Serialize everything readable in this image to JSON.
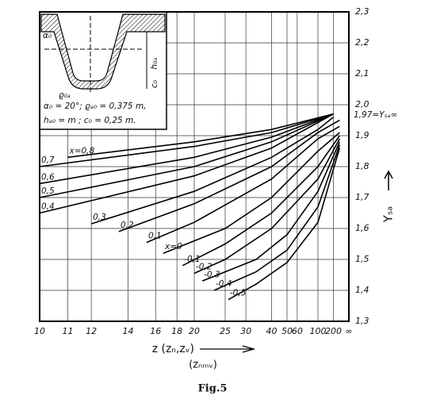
{
  "chart_data": {
    "type": "line",
    "xlabel": "z (zₙ,zᵥ)",
    "xlabel_sub": "(zₙₘᵥ)",
    "ylabel": "Yₛₐ",
    "xlim": [
      0.1,
      0
    ],
    "ylim": [
      1.3,
      2.3
    ],
    "xticks": [
      {
        "value": 0.1,
        "label": "10"
      },
      {
        "value": 0.0909,
        "label": "11"
      },
      {
        "value": 0.0833,
        "label": "12"
      },
      {
        "value": 0.0714,
        "label": "14"
      },
      {
        "value": 0.0625,
        "label": "16"
      },
      {
        "value": 0.0556,
        "label": "18"
      },
      {
        "value": 0.05,
        "label": "20"
      },
      {
        "value": 0.04,
        "label": "25"
      },
      {
        "value": 0.0333,
        "label": "30"
      },
      {
        "value": 0.025,
        "label": "40"
      },
      {
        "value": 0.02,
        "label": "50"
      },
      {
        "value": 0.0167,
        "label": "60"
      },
      {
        "value": 0.01,
        "label": "100"
      },
      {
        "value": 0.005,
        "label": "200"
      },
      {
        "value": 0,
        "label": "∞"
      }
    ],
    "yticks": [
      {
        "value": 1.3,
        "label": "1,3"
      },
      {
        "value": 1.4,
        "label": "1,4"
      },
      {
        "value": 1.5,
        "label": "1,5"
      },
      {
        "value": 1.6,
        "label": "1,6"
      },
      {
        "value": 1.7,
        "label": "1,7"
      },
      {
        "value": 1.8,
        "label": "1,8"
      },
      {
        "value": 1.9,
        "label": "1,9"
      },
      {
        "value": 2.0,
        "label": "2,0"
      },
      {
        "value": 2.1,
        "label": "2,1"
      },
      {
        "value": 2.2,
        "label": "2,2"
      },
      {
        "value": 2.3,
        "label": "2,3"
      }
    ],
    "grid": true,
    "color": "#000000",
    "series": [
      {
        "name": "x=0,8",
        "x": [
          0.0909,
          0.05,
          0.025,
          0.005
        ],
        "values": [
          1.83,
          1.88,
          1.92,
          1.97
        ]
      },
      {
        "name": "0,7",
        "x": [
          0.1,
          0.05,
          0.025,
          0.005
        ],
        "values": [
          1.8,
          1.865,
          1.91,
          1.97
        ]
      },
      {
        "name": "0,6",
        "x": [
          0.1,
          0.05,
          0.025,
          0.005
        ],
        "values": [
          1.745,
          1.83,
          1.895,
          1.97
        ]
      },
      {
        "name": "0,5",
        "x": [
          0.1,
          0.05,
          0.025,
          0.005
        ],
        "values": [
          1.7,
          1.8,
          1.88,
          1.97
        ]
      },
      {
        "name": "0,4",
        "x": [
          0.1,
          0.05,
          0.025,
          0.005
        ],
        "values": [
          1.65,
          1.77,
          1.86,
          1.97
        ]
      },
      {
        "name": "0,3",
        "x": [
          0.0833,
          0.05,
          0.025,
          0.01,
          0.005
        ],
        "values": [
          1.615,
          1.72,
          1.83,
          1.92,
          1.96
        ]
      },
      {
        "name": "0,2",
        "x": [
          0.0744,
          0.05,
          0.025,
          0.01,
          0.003
        ],
        "values": [
          1.59,
          1.68,
          1.8,
          1.91,
          1.95
        ]
      },
      {
        "name": "0,1",
        "x": [
          0.0654,
          0.05,
          0.025,
          0.01,
          0.003
        ],
        "values": [
          1.555,
          1.62,
          1.76,
          1.89,
          1.93
        ]
      },
      {
        "name": "x=0",
        "x": [
          0.06,
          0.04,
          0.025,
          0.01,
          0.003
        ],
        "values": [
          1.52,
          1.6,
          1.7,
          1.85,
          1.91
        ]
      },
      {
        "name": "-0,1",
        "x": [
          0.0538,
          0.04,
          0.025,
          0.01,
          0.003
        ],
        "values": [
          1.48,
          1.55,
          1.65,
          1.8,
          1.9
        ]
      },
      {
        "name": "-0,2",
        "x": [
          0.05,
          0.04,
          0.025,
          0.01,
          0.003
        ],
        "values": [
          1.455,
          1.5,
          1.6,
          1.76,
          1.89
        ]
      },
      {
        "name": "-0,3",
        "x": [
          0.0474,
          0.03,
          0.02,
          0.01,
          0.003
        ],
        "values": [
          1.43,
          1.5,
          1.58,
          1.72,
          1.88
        ]
      },
      {
        "name": "-0,4",
        "x": [
          0.0436,
          0.03,
          0.02,
          0.01,
          0.003
        ],
        "values": [
          1.4,
          1.46,
          1.53,
          1.67,
          1.87
        ]
      },
      {
        "name": "-0,5",
        "x": [
          0.039,
          0.03,
          0.02,
          0.01,
          0.003
        ],
        "values": [
          1.37,
          1.42,
          1.49,
          1.62,
          1.86
        ]
      }
    ],
    "annotations": [
      "1,97=Yₛₐ∞",
      "α₀ = 20°;  ϱₐ₀ = 0,375 m,",
      "hₐ₀ = m ;  c₀ = 0,25 m."
    ],
    "inset_labels": [
      "α₀",
      "ϱ₀ₐ",
      "h₀ₐ",
      "c₀"
    ]
  },
  "caption": "Fig.5"
}
